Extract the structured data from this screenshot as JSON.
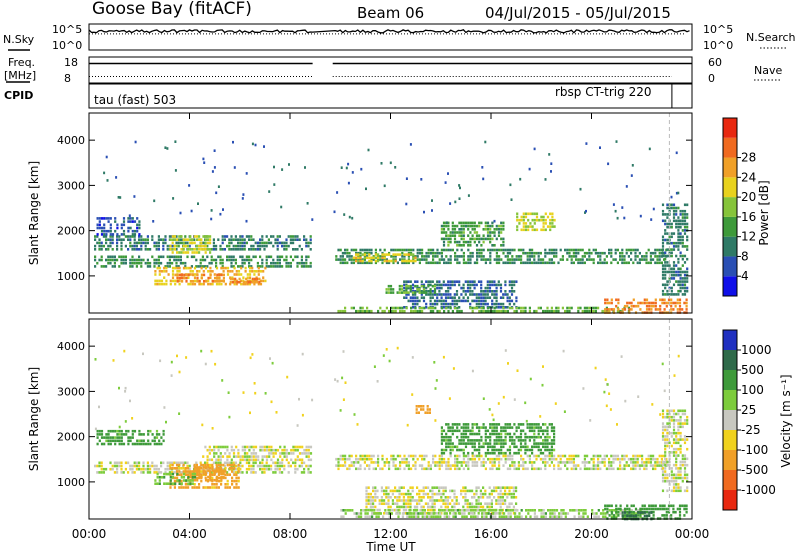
{
  "header": {
    "station": "Goose Bay (fitACF)",
    "beam": "Beam 06",
    "dates": "04/Jul/2015 - 05/Jul/2015"
  },
  "params": {
    "nsky_label": "N.Sky",
    "nsky_ticks": [
      "10^5",
      "10^0"
    ],
    "nsearch_label": "N.Search",
    "nsearch_ticks": [
      "10^5",
      "10^0"
    ],
    "freq_label_1": "Freq.",
    "freq_label_2": "[MHz]",
    "freq_ticks": [
      "18",
      "8"
    ],
    "nave_label": "Nave",
    "nave_ticks": [
      "60",
      "0"
    ],
    "cpid_label": "CPID",
    "cpid_left": "tau (fast) 503",
    "cpid_right": "rbsp CT-trig 220"
  },
  "chart_data": [
    {
      "type": "heatmap",
      "name": "power",
      "title": "",
      "xlabel": "",
      "ylabel": "Slant Range [km]",
      "xlim": [
        0,
        24
      ],
      "ylim": [
        180,
        4600
      ],
      "yticks": [
        1000,
        2000,
        3000,
        4000
      ],
      "colorbar": {
        "label": "Power [dB]",
        "ticks": [
          "4",
          "8",
          "12",
          "16",
          "20",
          "24",
          "28"
        ],
        "colors": [
          "#1010e8",
          "#2a4fb4",
          "#2f7a66",
          "#3e9a3a",
          "#86c43a",
          "#e8d21e",
          "#f0a028",
          "#f06a20",
          "#e82810"
        ]
      },
      "data_gap_hours": [
        8.9,
        9.7
      ],
      "regions": [
        {
          "t0": 0.2,
          "t1": 8.8,
          "r0": 1200,
          "r1": 1450,
          "db": 12
        },
        {
          "t0": 0.2,
          "t1": 8.8,
          "r0": 1550,
          "r1": 1900,
          "db": 10
        },
        {
          "t0": 2.6,
          "t1": 7.0,
          "r0": 820,
          "r1": 1200,
          "db": 24
        },
        {
          "t0": 3.4,
          "t1": 5.4,
          "r0": 850,
          "r1": 1050,
          "db": 28
        },
        {
          "t0": 5.6,
          "t1": 6.8,
          "r0": 870,
          "r1": 960,
          "db": 28
        },
        {
          "t0": 3.2,
          "t1": 4.8,
          "r0": 1500,
          "r1": 1900,
          "db": 20
        },
        {
          "t0": 0.3,
          "t1": 2.0,
          "r0": 1900,
          "r1": 2300,
          "db": 6
        },
        {
          "t0": 9.8,
          "t1": 23.0,
          "r0": 1300,
          "r1": 1600,
          "db": 12
        },
        {
          "t0": 10.5,
          "t1": 13.0,
          "r0": 1300,
          "r1": 1500,
          "db": 22
        },
        {
          "t0": 12.5,
          "t1": 17.0,
          "r0": 300,
          "r1": 900,
          "db": 8
        },
        {
          "t0": 11.8,
          "t1": 13.8,
          "r0": 600,
          "r1": 800,
          "db": 16
        },
        {
          "t0": 14.0,
          "t1": 16.5,
          "r0": 1650,
          "r1": 2200,
          "db": 14
        },
        {
          "t0": 17.0,
          "t1": 18.5,
          "r0": 2000,
          "r1": 2400,
          "db": 20
        },
        {
          "t0": 9.8,
          "t1": 21.5,
          "r0": 200,
          "r1": 320,
          "db": 16
        },
        {
          "t0": 20.5,
          "t1": 23.8,
          "r0": 200,
          "r1": 500,
          "db": 28
        },
        {
          "t0": 22.8,
          "t1": 23.8,
          "r0": 600,
          "r1": 2600,
          "db": 10
        }
      ]
    },
    {
      "type": "heatmap",
      "name": "velocity",
      "title": "",
      "xlabel": "Time UT",
      "ylabel": "Slant Range [km]",
      "xlim": [
        0,
        24
      ],
      "ylim": [
        180,
        4600
      ],
      "xticks": [
        "00:00",
        "04:00",
        "08:00",
        "12:00",
        "16:00",
        "20:00",
        "00:00"
      ],
      "yticks": [
        1000,
        2000,
        3000,
        4000
      ],
      "colorbar": {
        "label": "Velocity [m s⁻¹]",
        "ticks": [
          "1000",
          "500",
          "100",
          "25",
          "-25",
          "-100",
          "-500",
          "-1000"
        ],
        "colors": [
          "#2030c0",
          "#2f6a4a",
          "#3e9a3a",
          "#7dcc3c",
          "#c8c8c0",
          "#f0d21e",
          "#f0a028",
          "#f06a20",
          "#e82810"
        ]
      },
      "data_gap_hours": [
        8.9,
        9.7
      ],
      "regions": [
        {
          "t0": 0.2,
          "t1": 8.8,
          "r0": 1200,
          "r1": 1450,
          "v": 0
        },
        {
          "t0": 4.5,
          "t1": 8.8,
          "r0": 1500,
          "r1": 1800,
          "v": 0
        },
        {
          "t0": 0.3,
          "t1": 3.0,
          "r0": 1800,
          "r1": 2150,
          "v": 150
        },
        {
          "t0": 3.2,
          "t1": 6.0,
          "r0": 900,
          "r1": 1400,
          "v": -150
        },
        {
          "t0": 4.0,
          "t1": 5.4,
          "r0": 1000,
          "r1": 1350,
          "v": -400
        },
        {
          "t0": 2.6,
          "t1": 4.2,
          "r0": 950,
          "r1": 1200,
          "v": 80
        },
        {
          "t0": 9.8,
          "t1": 23.0,
          "r0": 1300,
          "r1": 1600,
          "v": 0
        },
        {
          "t0": 14.0,
          "t1": 18.5,
          "r0": 1600,
          "r1": 2300,
          "v": 150
        },
        {
          "t0": 11.0,
          "t1": 17.0,
          "r0": 300,
          "r1": 900,
          "v": 0
        },
        {
          "t0": 13.0,
          "t1": 13.6,
          "r0": 2500,
          "r1": 2700,
          "v": -300
        },
        {
          "t0": 10.0,
          "t1": 22.0,
          "r0": 200,
          "r1": 400,
          "v": 50
        },
        {
          "t0": 20.5,
          "t1": 23.8,
          "r0": 200,
          "r1": 500,
          "v": 200
        },
        {
          "t0": 21.2,
          "t1": 22.4,
          "r0": 200,
          "r1": 350,
          "v": 800
        },
        {
          "t0": 22.8,
          "t1": 23.8,
          "r0": 800,
          "r1": 2600,
          "v": 0
        }
      ]
    }
  ],
  "param_data": {
    "nsky_level": 0.72,
    "nsearch_level": 0.62,
    "freq_level": 0.75,
    "nave_level": 0.25,
    "cpid_change_hour": 23.2
  }
}
